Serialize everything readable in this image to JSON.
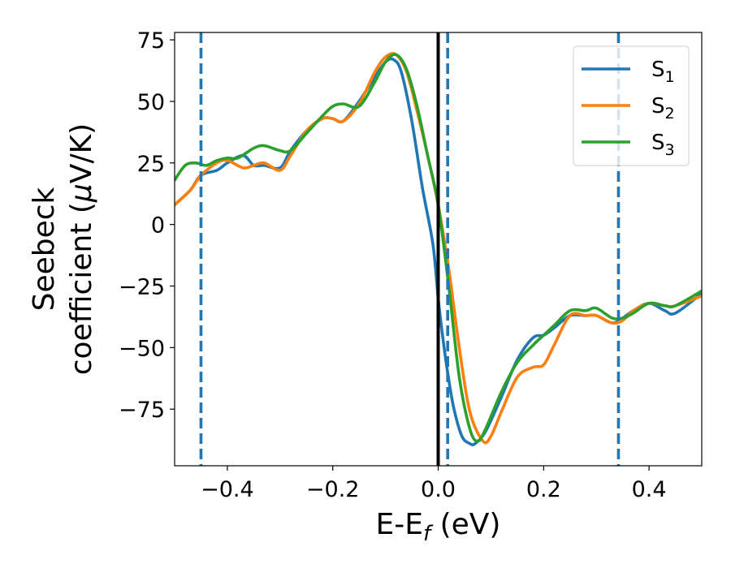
{
  "chart_data": {
    "type": "line",
    "xlabel": "E-E",
    "xlabel_sub": "f",
    "xlabel_unit": " (eV)",
    "ylabel_line1": "Seebeck",
    "ylabel_line2": "coefficient  (",
    "ylabel_mu": "μ",
    "ylabel_unit": "V/K)",
    "xlim": [
      -0.5,
      0.5
    ],
    "ylim": [
      -98,
      78
    ],
    "xticks": [
      -0.4,
      -0.2,
      0.0,
      0.2,
      0.4
    ],
    "xtick_labels": [
      "−0.4",
      "−0.2",
      "0.0",
      "0.2",
      "0.4"
    ],
    "yticks": [
      75,
      50,
      25,
      0,
      -25,
      -50,
      -75
    ],
    "ytick_labels": [
      "75",
      "50",
      "25",
      "0",
      "−25",
      "−50",
      "−75"
    ],
    "grid": false,
    "legend_position": "top-right",
    "vertical_lines": [
      {
        "x": 0.0,
        "style": "solid",
        "color": "#000000"
      },
      {
        "x": -0.45,
        "style": "dashed",
        "color": "#1f77b4"
      },
      {
        "x": 0.018,
        "style": "dashed",
        "color": "#1f77b4"
      },
      {
        "x": 0.342,
        "style": "dashed",
        "color": "#1f77b4"
      }
    ],
    "series": [
      {
        "name": "S",
        "sub": "1",
        "color": "#1f77b4",
        "x": [
          -0.5,
          -0.47,
          -0.45,
          -0.42,
          -0.4,
          -0.37,
          -0.35,
          -0.33,
          -0.3,
          -0.28,
          -0.25,
          -0.22,
          -0.2,
          -0.18,
          -0.15,
          -0.12,
          -0.1,
          -0.085,
          -0.07,
          -0.05,
          -0.03,
          -0.01,
          0.0,
          0.01,
          0.02,
          0.03,
          0.045,
          0.06,
          0.07,
          0.09,
          0.12,
          0.15,
          0.18,
          0.2,
          0.22,
          0.25,
          0.28,
          0.3,
          0.33,
          0.35,
          0.37,
          0.4,
          0.43,
          0.45,
          0.5
        ],
        "y": [
          8,
          14,
          20,
          22,
          25,
          28,
          24,
          24,
          23,
          30,
          38,
          43,
          43,
          42,
          50,
          60,
          66,
          67,
          62,
          42,
          15,
          -8,
          -30,
          -48,
          -63,
          -75,
          -86,
          -89,
          -89,
          -84,
          -70,
          -55,
          -46,
          -45,
          -42,
          -37,
          -37,
          -37,
          -40,
          -38,
          -35,
          -32,
          -35,
          -36,
          -28
        ]
      },
      {
        "name": "S",
        "sub": "2",
        "color": "#ff7f0e",
        "x": [
          -0.5,
          -0.47,
          -0.45,
          -0.42,
          -0.4,
          -0.37,
          -0.35,
          -0.33,
          -0.3,
          -0.28,
          -0.25,
          -0.22,
          -0.2,
          -0.18,
          -0.15,
          -0.12,
          -0.1,
          -0.08,
          -0.06,
          -0.04,
          -0.02,
          0.0,
          0.02,
          0.04,
          0.06,
          0.085,
          0.1,
          0.12,
          0.15,
          0.18,
          0.2,
          0.22,
          0.25,
          0.28,
          0.3,
          0.33,
          0.35,
          0.37,
          0.4,
          0.43,
          0.45,
          0.5
        ],
        "y": [
          8,
          14,
          20,
          25,
          26,
          23,
          24,
          25,
          22,
          28,
          38,
          43,
          43,
          42,
          49,
          62,
          68,
          69,
          62,
          46,
          28,
          8,
          -18,
          -50,
          -76,
          -88,
          -86,
          -76,
          -62,
          -58,
          -57,
          -49,
          -37,
          -37,
          -37,
          -40,
          -39,
          -35,
          -32,
          -33,
          -33,
          -29
        ]
      },
      {
        "name": "S",
        "sub": "3",
        "color": "#2ca02c",
        "x": [
          -0.5,
          -0.48,
          -0.46,
          -0.44,
          -0.42,
          -0.4,
          -0.38,
          -0.35,
          -0.33,
          -0.3,
          -0.28,
          -0.25,
          -0.22,
          -0.2,
          -0.18,
          -0.15,
          -0.12,
          -0.1,
          -0.08,
          -0.06,
          -0.04,
          -0.02,
          0.0,
          0.02,
          0.04,
          0.06,
          0.075,
          0.09,
          0.12,
          0.15,
          0.18,
          0.2,
          0.22,
          0.25,
          0.28,
          0.3,
          0.33,
          0.35,
          0.37,
          0.4,
          0.43,
          0.45,
          0.5
        ],
        "y": [
          18,
          24,
          25,
          24,
          26,
          27,
          27,
          31,
          32,
          30,
          30,
          37,
          44,
          48,
          49,
          48,
          58,
          66,
          69,
          63,
          48,
          28,
          8,
          -25,
          -62,
          -83,
          -88,
          -83,
          -68,
          -56,
          -49,
          -45,
          -41,
          -35,
          -35,
          -34,
          -38,
          -38,
          -36,
          -32,
          -33,
          -33,
          -27
        ]
      }
    ]
  }
}
